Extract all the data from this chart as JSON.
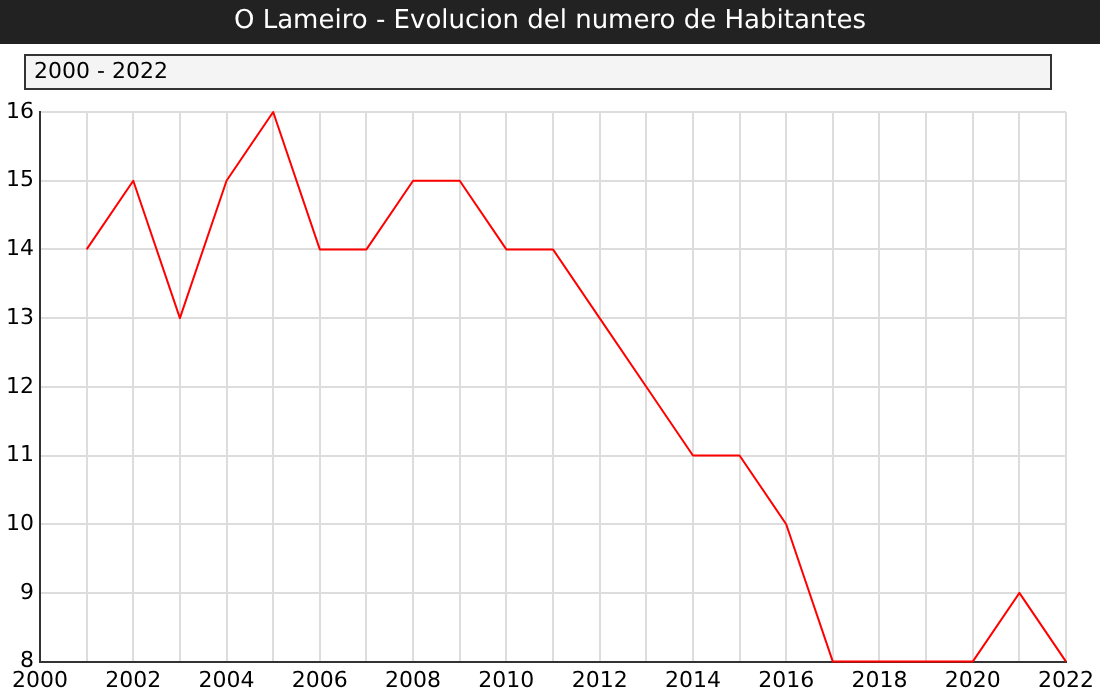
{
  "chart_data": {
    "type": "line",
    "title": "O Lameiro - Evolucion del numero de Habitantes",
    "subtitle": "2000 - 2022",
    "x": [
      2001,
      2002,
      2003,
      2004,
      2005,
      2006,
      2007,
      2008,
      2009,
      2010,
      2011,
      2012,
      2013,
      2014,
      2015,
      2016,
      2017,
      2018,
      2019,
      2020,
      2021,
      2022
    ],
    "series": [
      {
        "color": "#ff0000",
        "values": [
          14,
          15,
          13,
          15,
          16,
          14,
          14,
          15,
          15,
          14,
          14,
          13,
          12,
          11,
          11,
          10,
          8,
          8,
          8,
          8,
          9,
          8
        ]
      }
    ],
    "xlim": [
      2000,
      2022
    ],
    "xticks": [
      2000,
      {
        "value": 2001,
        "label": null
      },
      2002,
      {
        "value": 2003,
        "label": null
      },
      2004,
      {
        "value": 2005,
        "label": null
      },
      2006,
      {
        "value": 2007,
        "label": null
      },
      2008,
      {
        "value": 2009,
        "label": null
      },
      2010,
      {
        "value": 2011,
        "label": null
      },
      2012,
      {
        "value": 2013,
        "label": null
      },
      2014,
      {
        "value": 2015,
        "label": null
      },
      2016,
      {
        "value": 2017,
        "label": null
      },
      2018,
      {
        "value": 2019,
        "label": null
      },
      2020,
      {
        "value": 2021,
        "label": null
      },
      2022
    ],
    "ylim": [
      8,
      16
    ],
    "yticks": [
      8,
      9,
      10,
      11,
      12,
      13,
      14,
      15,
      16
    ],
    "grid": true,
    "marker": "none",
    "line_style": "solid"
  }
}
